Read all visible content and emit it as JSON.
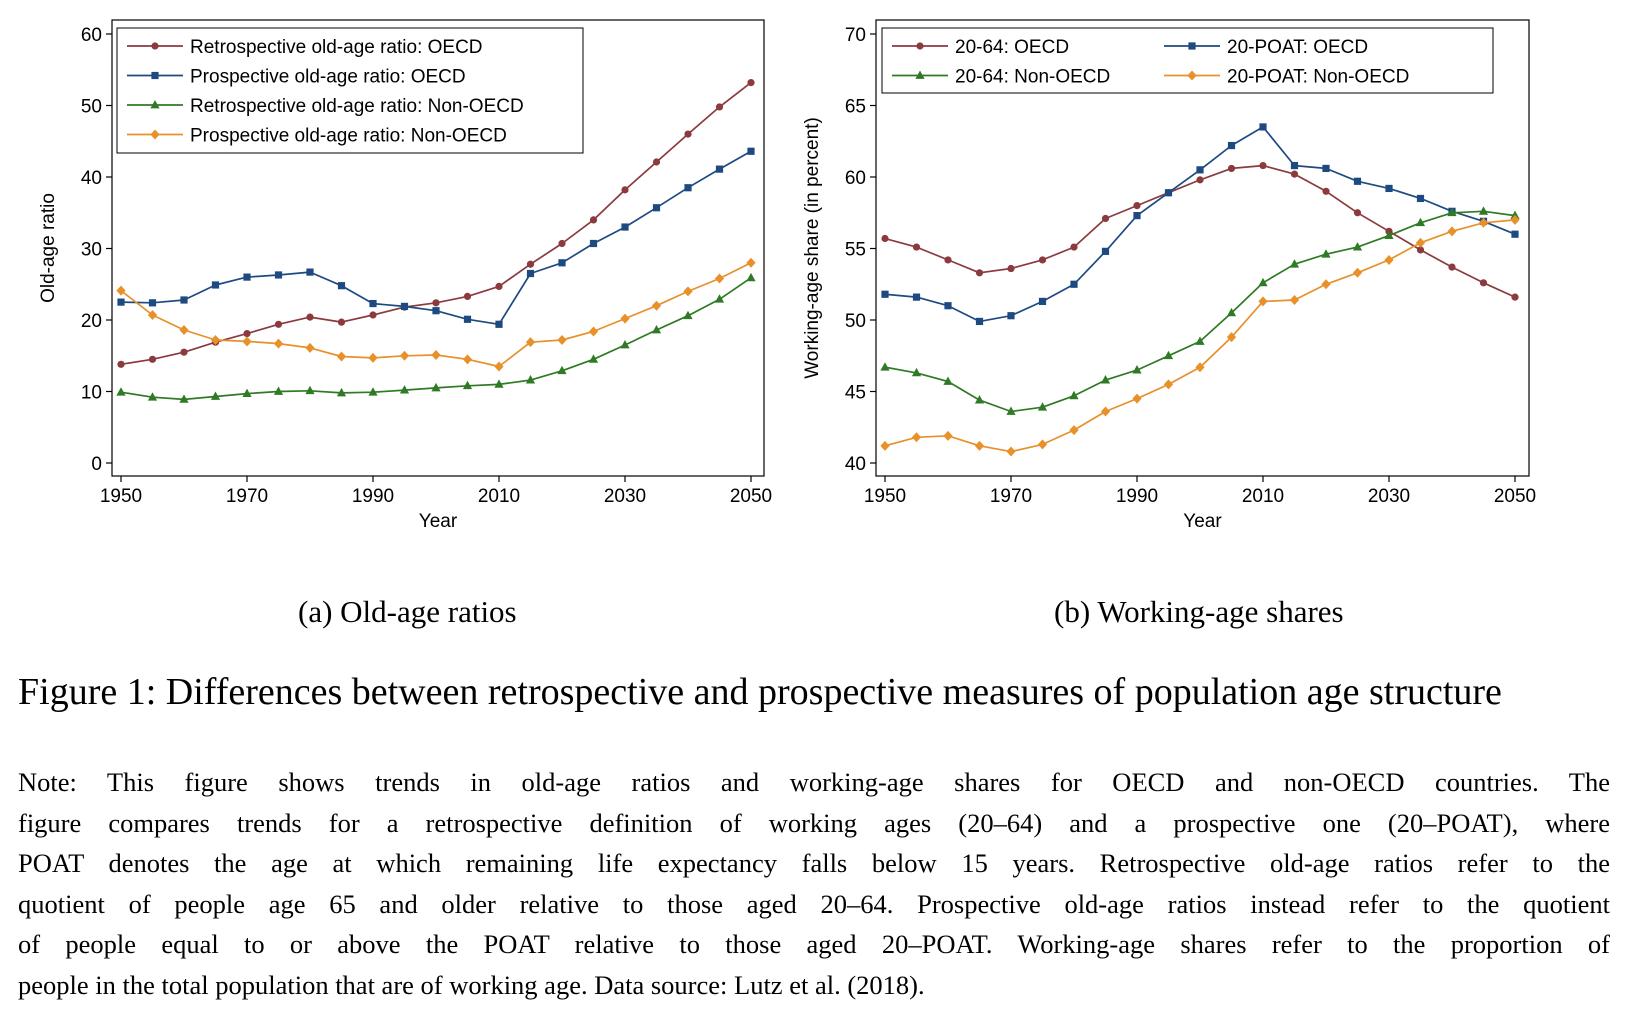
{
  "chart_data": [
    {
      "type": "line",
      "panel_caption": "(a) Old-age ratios",
      "xlabel": "Year",
      "ylabel": "Old-age ratio",
      "xlim": [
        1950,
        2050
      ],
      "ylim": [
        0,
        60
      ],
      "xticks": [
        "1950",
        "1970",
        "1990",
        "2010",
        "2030",
        "2050"
      ],
      "yticks": [
        "0",
        "10",
        "20",
        "30",
        "40",
        "50",
        "60"
      ],
      "grid": false,
      "legend_position": "top-left",
      "x": [
        1950,
        1955,
        1960,
        1965,
        1970,
        1975,
        1980,
        1985,
        1990,
        1995,
        2000,
        2005,
        2010,
        2015,
        2020,
        2025,
        2030,
        2035,
        2040,
        2045,
        2050
      ],
      "series": [
        {
          "name": "Retrospective old-age ratio: OECD",
          "color": "#8b3a3e",
          "marker": "circle",
          "values": [
            13.8,
            14.5,
            15.5,
            16.9,
            18.1,
            19.4,
            20.4,
            19.7,
            20.7,
            21.8,
            22.4,
            23.3,
            24.7,
            27.8,
            30.7,
            34.0,
            38.2,
            42.1,
            46.0,
            49.8,
            53.2
          ]
        },
        {
          "name": "Prospective old-age ratio: OECD",
          "color": "#1e4a82",
          "marker": "square",
          "values": [
            22.5,
            22.4,
            22.8,
            24.9,
            26.0,
            26.3,
            26.7,
            24.8,
            22.3,
            21.9,
            21.3,
            20.1,
            19.4,
            26.5,
            28.0,
            30.7,
            33.0,
            35.7,
            38.5,
            41.1,
            43.6
          ]
        },
        {
          "name": "Retrospective old-age ratio: Non-OECD",
          "color": "#2f7a24",
          "marker": "triangle",
          "values": [
            9.9,
            9.2,
            8.9,
            9.3,
            9.7,
            10.0,
            10.1,
            9.8,
            9.9,
            10.2,
            10.5,
            10.8,
            11.0,
            11.6,
            12.9,
            14.5,
            16.5,
            18.6,
            20.6,
            22.9,
            25.9
          ]
        },
        {
          "name": "Prospective old-age ratio: Non-OECD",
          "color": "#e8902a",
          "marker": "diamond",
          "values": [
            24.1,
            20.7,
            18.6,
            17.2,
            17.0,
            16.7,
            16.1,
            14.9,
            14.7,
            15.0,
            15.1,
            14.5,
            13.5,
            16.9,
            17.2,
            18.4,
            20.2,
            22.0,
            24.0,
            25.8,
            28.0
          ]
        }
      ]
    },
    {
      "type": "line",
      "panel_caption": "(b) Working-age shares",
      "xlabel": "Year",
      "ylabel": "Working-age share (in percent)",
      "xlim": [
        1950,
        2050
      ],
      "ylim": [
        40,
        70
      ],
      "xticks": [
        "1950",
        "1970",
        "1990",
        "2010",
        "2030",
        "2050"
      ],
      "yticks": [
        "40",
        "45",
        "50",
        "55",
        "60",
        "65",
        "70"
      ],
      "grid": false,
      "legend_position": "top",
      "x": [
        1950,
        1955,
        1960,
        1965,
        1970,
        1975,
        1980,
        1985,
        1990,
        1995,
        2000,
        2005,
        2010,
        2015,
        2020,
        2025,
        2030,
        2035,
        2040,
        2045,
        2050
      ],
      "series": [
        {
          "name": "20-64: OECD",
          "color": "#8b3a3e",
          "marker": "circle",
          "values": [
            55.7,
            55.1,
            54.2,
            53.3,
            53.6,
            54.2,
            55.1,
            57.1,
            58.0,
            58.9,
            59.8,
            60.6,
            60.8,
            60.2,
            59.0,
            57.5,
            56.2,
            54.9,
            53.7,
            52.6,
            51.6
          ]
        },
        {
          "name": "20-POAT: OECD",
          "color": "#1e4a82",
          "marker": "square",
          "values": [
            51.8,
            51.6,
            51.0,
            49.9,
            50.3,
            51.3,
            52.5,
            54.8,
            57.3,
            58.9,
            60.5,
            62.2,
            63.5,
            60.8,
            60.6,
            59.7,
            59.2,
            58.5,
            57.6,
            56.9,
            56.0
          ]
        },
        {
          "name": "20-64: Non-OECD",
          "color": "#2f7a24",
          "marker": "triangle",
          "values": [
            46.7,
            46.3,
            45.7,
            44.4,
            43.6,
            43.9,
            44.7,
            45.8,
            46.5,
            47.5,
            48.5,
            50.5,
            52.6,
            53.9,
            54.6,
            55.1,
            55.9,
            56.8,
            57.5,
            57.6,
            57.3
          ]
        },
        {
          "name": "20-POAT: Non-OECD",
          "color": "#e8902a",
          "marker": "diamond",
          "values": [
            41.2,
            41.8,
            41.9,
            41.2,
            40.8,
            41.3,
            42.3,
            43.6,
            44.5,
            45.5,
            46.7,
            48.8,
            51.3,
            51.4,
            52.5,
            53.3,
            54.2,
            55.4,
            56.2,
            56.8,
            57.0
          ]
        }
      ]
    }
  ],
  "captions": {
    "panel_a": "(a) Old-age ratios",
    "panel_b": "(b) Working-age shares",
    "figure": "Figure 1: Differences between retrospective and prospective measures of population age structure"
  },
  "note_lines": [
    "Note: This figure shows trends in old-age ratios and working-age shares for OECD and non-OECD countries. The",
    "figure compares trends for a retrospective definition of working ages (20–64) and a prospective one (20–POAT), where",
    "POAT denotes the age at which remaining life expectancy falls below 15 years. Retrospective old-age ratios refer to the",
    "quotient of people age 65 and older relative to those aged 20–64. Prospective old-age ratios instead refer to the quotient",
    "of people equal to or above the POAT relative to those aged 20–POAT. Working-age shares refer to the proportion of",
    "people in the total population that are of working age. Data source: Lutz et al. (2018)."
  ]
}
